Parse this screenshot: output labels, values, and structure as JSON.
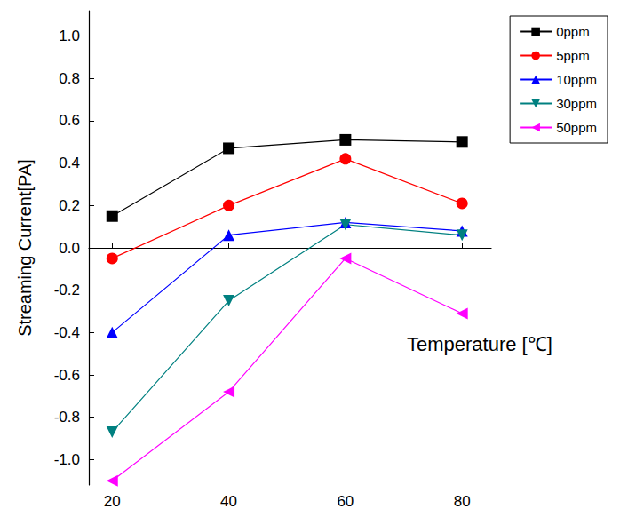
{
  "chart_data": {
    "type": "line",
    "x_label": "Temperature [℃]",
    "y_label": "Streaming Current[PA]",
    "x": [
      20,
      40,
      60,
      80
    ],
    "series": [
      {
        "name": "0ppm",
        "color": "#000000",
        "marker": "square",
        "values": [
          0.15,
          0.47,
          0.51,
          0.5
        ]
      },
      {
        "name": "5ppm",
        "color": "#ff0000",
        "marker": "circle",
        "values": [
          -0.05,
          0.2,
          0.42,
          0.21
        ]
      },
      {
        "name": "10ppm",
        "color": "#0000ff",
        "marker": "triangle",
        "values": [
          -0.4,
          0.06,
          0.12,
          0.08
        ]
      },
      {
        "name": "30ppm",
        "color": "#008080",
        "marker": "triangle-down",
        "values": [
          -0.87,
          -0.25,
          0.11,
          0.06
        ]
      },
      {
        "name": "50ppm",
        "color": "#ff00ff",
        "marker": "triangle-left",
        "values": [
          -1.1,
          -0.68,
          -0.05,
          -0.31
        ]
      }
    ],
    "xlim": [
      16,
      85
    ],
    "xticks": [
      20,
      40,
      60,
      80
    ],
    "ylim": [
      -1.12,
      1.12
    ],
    "yticks": [
      {
        "value": -1,
        "label": "-1.0"
      },
      -0.8,
      -0.6,
      -0.4,
      -0.2,
      {
        "value": 0,
        "label": "0.0"
      },
      0.2,
      0.4,
      0.6,
      0.8,
      {
        "value": 1,
        "label": "1.0"
      }
    ],
    "grid": false,
    "legend": "upper right"
  }
}
